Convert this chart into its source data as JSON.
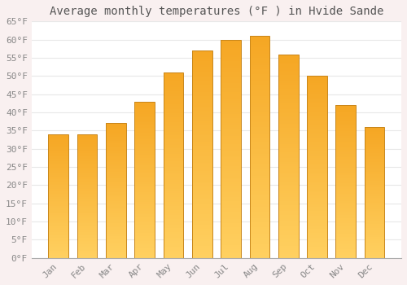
{
  "title": "Average monthly temperatures (°F ) in Hvide Sande",
  "months": [
    "Jan",
    "Feb",
    "Mar",
    "Apr",
    "May",
    "Jun",
    "Jul",
    "Aug",
    "Sep",
    "Oct",
    "Nov",
    "Dec"
  ],
  "values": [
    34,
    34,
    37,
    43,
    51,
    57,
    60,
    61,
    56,
    50,
    42,
    36
  ],
  "bar_color_top": "#F5A623",
  "bar_color_bottom": "#FFD060",
  "bar_edge_color": "#C8861A",
  "ylim": [
    0,
    65
  ],
  "yticks": [
    0,
    5,
    10,
    15,
    20,
    25,
    30,
    35,
    40,
    45,
    50,
    55,
    60,
    65
  ],
  "ytick_labels": [
    "0°F",
    "5°F",
    "10°F",
    "15°F",
    "20°F",
    "25°F",
    "30°F",
    "35°F",
    "40°F",
    "45°F",
    "50°F",
    "55°F",
    "60°F",
    "65°F"
  ],
  "plot_bg_color": "#ffffff",
  "fig_bg_color": "#f9f0f0",
  "grid_color": "#e8e8e8",
  "title_fontsize": 10,
  "tick_fontsize": 8,
  "font_family": "monospace",
  "tick_color": "#888888",
  "bar_width": 0.7
}
